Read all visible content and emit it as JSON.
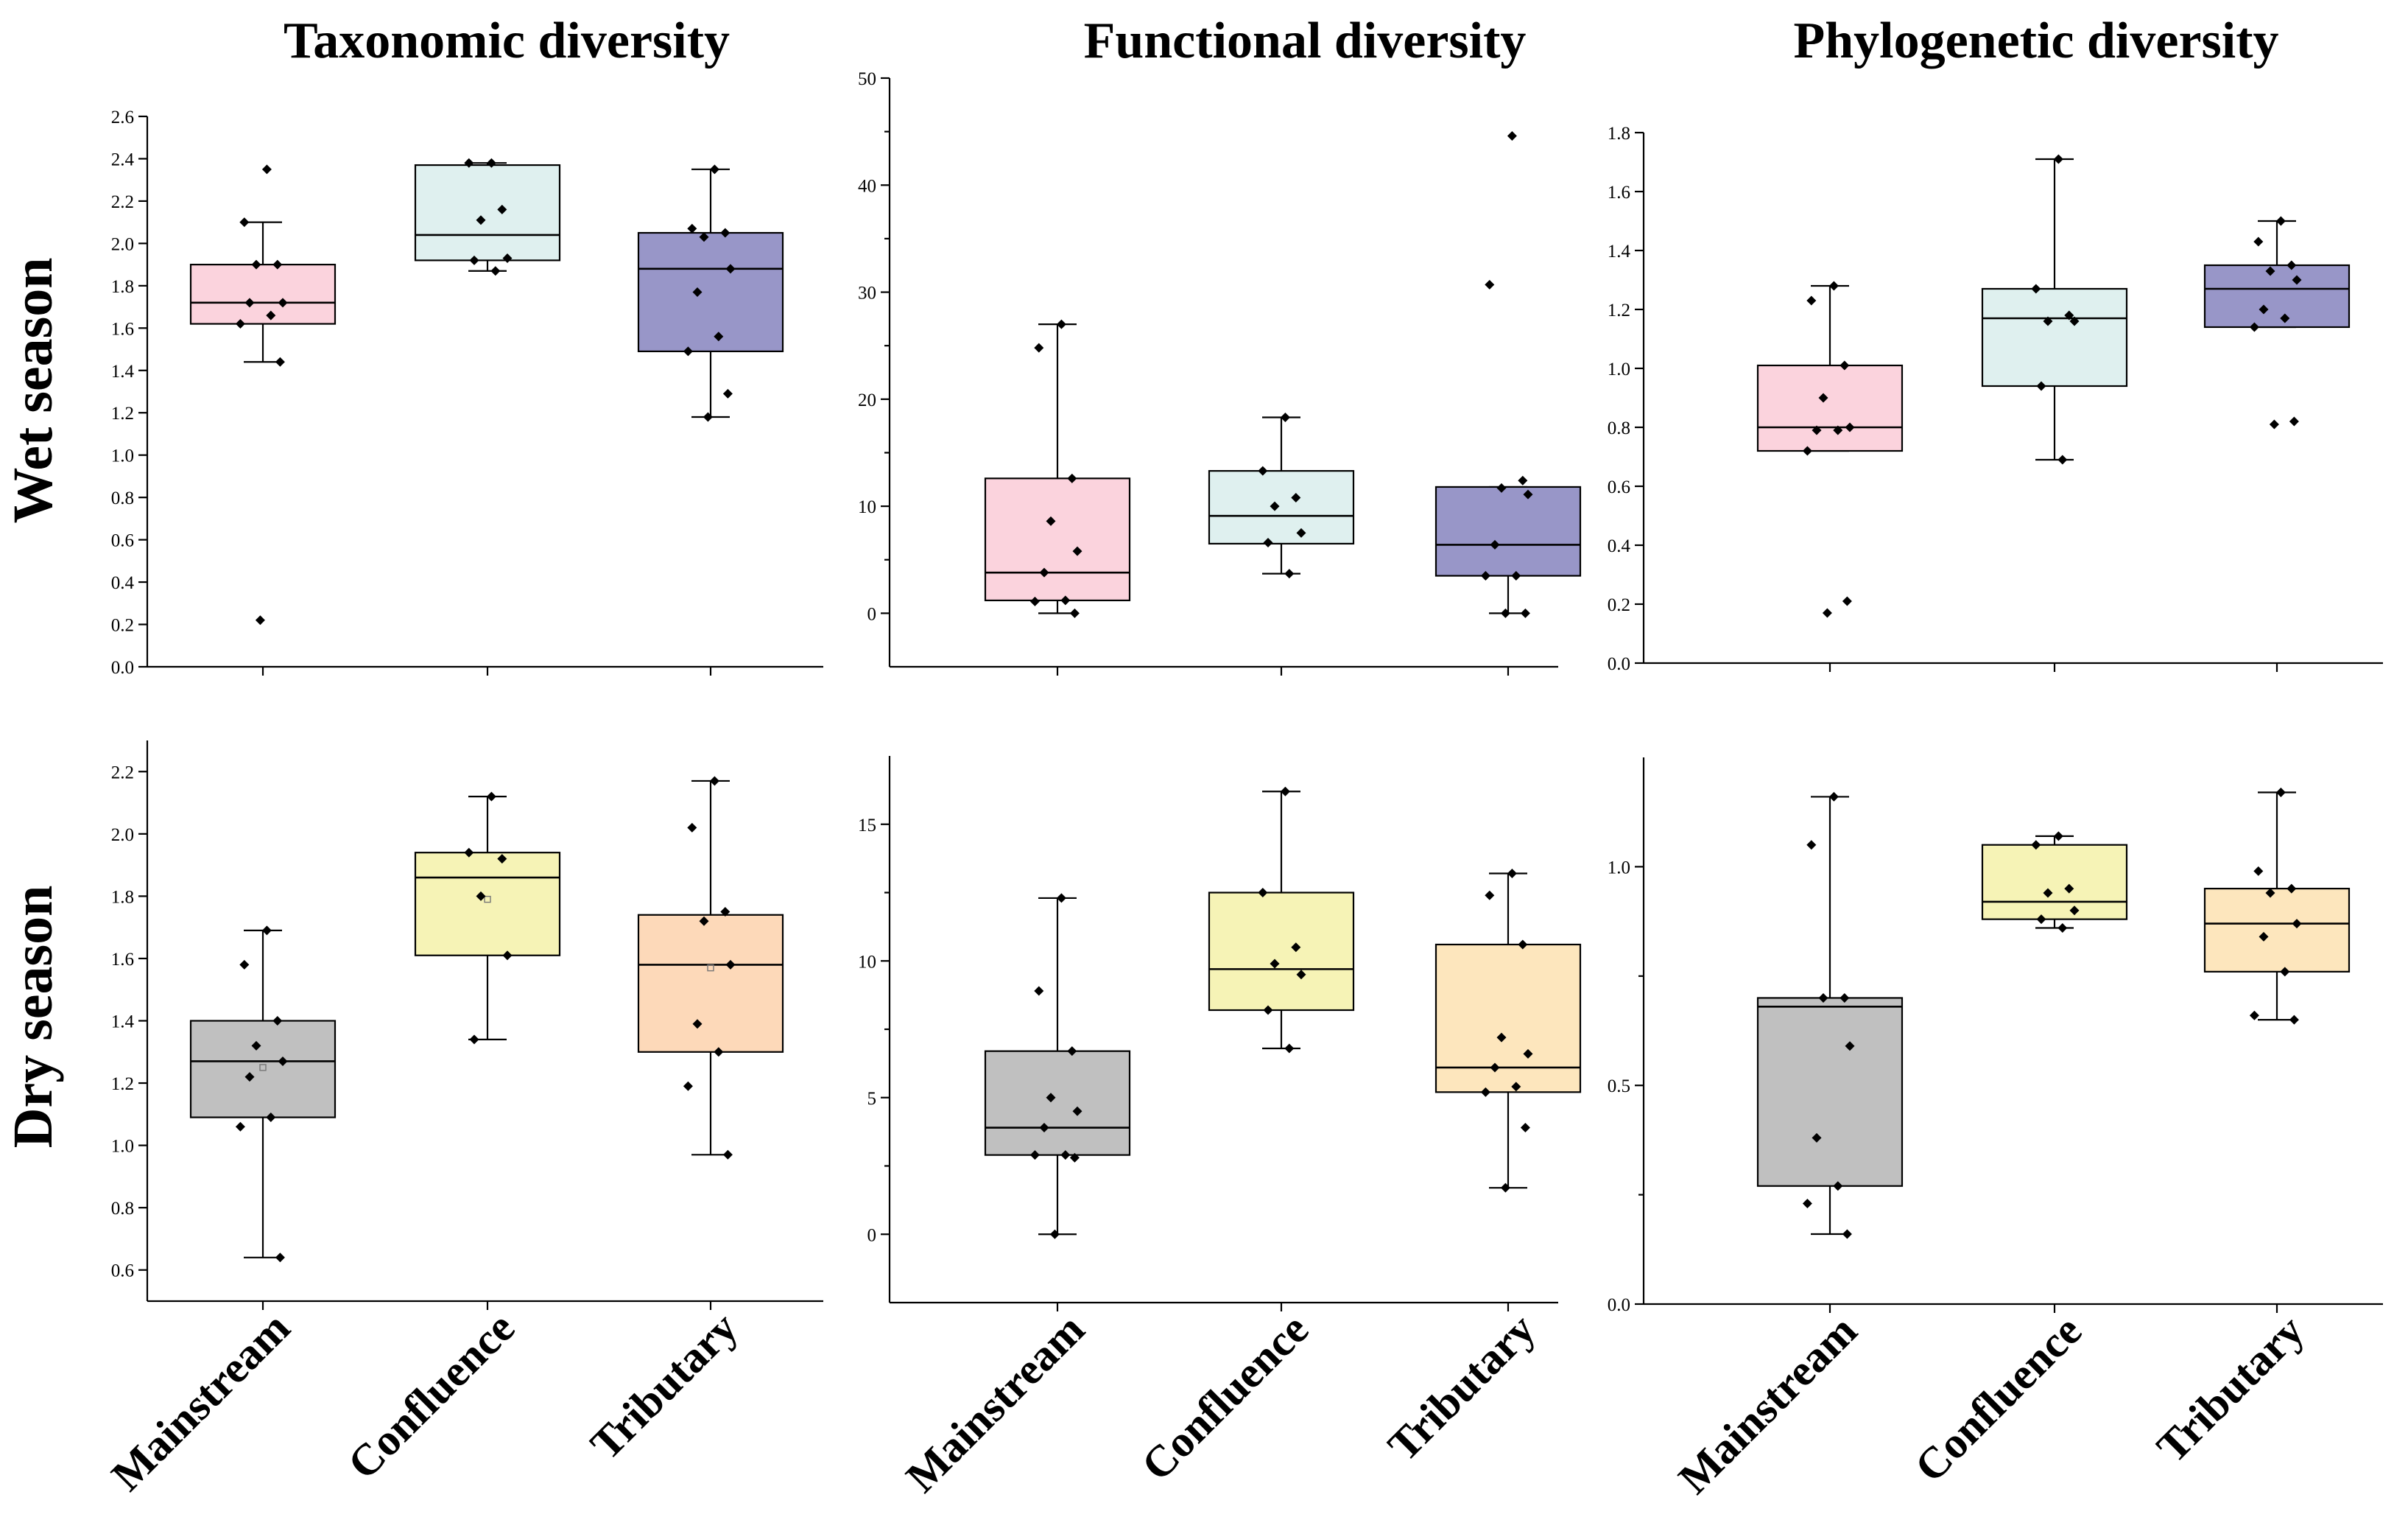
{
  "figure": {
    "column_titles": [
      "Taxonomic diversity",
      "Functional diversity",
      "Phylogenetic diversity"
    ],
    "row_titles": [
      "Wet season",
      "Dry season"
    ],
    "categories": [
      "Mainstream",
      "Confluence",
      "Tributary"
    ]
  },
  "colors": {
    "wet": [
      "#fbd3dd",
      "#dff0ef",
      "#9896c8"
    ],
    "dry_taxonomic": [
      "#c0c0c0",
      "#f6f3b6",
      "#fdd9b9"
    ],
    "dry_functional": [
      "#c0c0c0",
      "#f6f3b6",
      "#fde6bd"
    ],
    "dry_phylogenetic": [
      "#c0c0c0",
      "#f6f3b6",
      "#fde6bd"
    ]
  },
  "chart_data": [
    {
      "type": "box",
      "panel": "Wet season - Taxonomic diversity",
      "categories": [
        "Mainstream",
        "Confluence",
        "Tributary"
      ],
      "ylim": [
        0,
        2.6
      ],
      "yticks": [
        "0.0",
        "0.2",
        "0.4",
        "0.6",
        "0.8",
        "1.0",
        "1.2",
        "1.4",
        "1.6",
        "1.8",
        "2.0",
        "2.2",
        "2.4",
        "2.6"
      ],
      "boxes": [
        {
          "q1": 1.62,
          "median": 1.72,
          "q3": 1.9,
          "whisker_low": 1.44,
          "whisker_high": 2.1
        },
        {
          "q1": 1.92,
          "median": 2.04,
          "q3": 2.37,
          "whisker_low": 1.87,
          "whisker_high": 2.38
        },
        {
          "q1": 1.49,
          "median": 1.88,
          "q3": 2.05,
          "whisker_low": 1.18,
          "whisker_high": 2.35
        }
      ],
      "points": [
        [
          2.35,
          2.1,
          1.9,
          1.9,
          1.72,
          1.72,
          1.66,
          1.62,
          1.44,
          0.22
        ],
        [
          2.38,
          2.38,
          2.16,
          2.11,
          1.93,
          1.92,
          1.87
        ],
        [
          2.35,
          2.07,
          2.05,
          2.03,
          1.88,
          1.77,
          1.56,
          1.49,
          1.29,
          1.18
        ]
      ]
    },
    {
      "type": "box",
      "panel": "Wet season - Functional diversity",
      "categories": [
        "Mainstream",
        "Confluence",
        "Tributary"
      ],
      "ylim": [
        -5,
        50
      ],
      "yticks": [
        "0",
        "10",
        "20",
        "30",
        "40",
        "50"
      ],
      "boxes": [
        {
          "q1": 1.2,
          "median": 3.8,
          "q3": 12.6,
          "whisker_low": 0.0,
          "whisker_high": 27.0
        },
        {
          "q1": 6.5,
          "median": 9.1,
          "q3": 13.3,
          "whisker_low": 3.7,
          "whisker_high": 18.3
        },
        {
          "q1": 3.5,
          "median": 6.4,
          "q3": 11.8,
          "whisker_low": 0.0,
          "whisker_high": 11.8
        }
      ],
      "points": [
        [
          27.0,
          24.8,
          12.6,
          8.6,
          5.8,
          3.8,
          1.2,
          1.1,
          0.0
        ],
        [
          18.3,
          13.3,
          10.8,
          10.0,
          7.5,
          6.6,
          3.7
        ],
        [
          44.6,
          30.7,
          12.4,
          11.7,
          11.1,
          6.4,
          3.5,
          3.5,
          0.0,
          0.0
        ]
      ]
    },
    {
      "type": "box",
      "panel": "Wet season - Phylogenetic diversity",
      "categories": [
        "Mainstream",
        "Confluence",
        "Tributary"
      ],
      "ylim": [
        0,
        1.8
      ],
      "yticks": [
        "0.0",
        "0.2",
        "0.4",
        "0.6",
        "0.8",
        "1.0",
        "1.2",
        "1.4",
        "1.6",
        "1.8"
      ],
      "boxes": [
        {
          "q1": 0.72,
          "median": 0.8,
          "q3": 1.01,
          "whisker_low": 0.72,
          "whisker_high": 1.28
        },
        {
          "q1": 0.94,
          "median": 1.17,
          "q3": 1.27,
          "whisker_low": 0.69,
          "whisker_high": 1.71
        },
        {
          "q1": 1.14,
          "median": 1.27,
          "q3": 1.35,
          "whisker_low": 1.14,
          "whisker_high": 1.5
        }
      ],
      "points": [
        [
          1.28,
          1.23,
          1.01,
          0.9,
          0.8,
          0.79,
          0.79,
          0.72,
          0.21,
          0.17
        ],
        [
          1.71,
          1.27,
          1.18,
          1.16,
          1.16,
          0.94,
          0.69
        ],
        [
          1.5,
          1.43,
          1.35,
          1.33,
          1.3,
          1.2,
          1.17,
          1.14,
          0.82,
          0.81
        ]
      ]
    },
    {
      "type": "box",
      "panel": "Dry season - Taxonomic diversity",
      "categories": [
        "Mainstream",
        "Confluence",
        "Tributary"
      ],
      "ylim": [
        0.5,
        2.3
      ],
      "yticks": [
        "0.6",
        "0.8",
        "1.0",
        "1.2",
        "1.4",
        "1.6",
        "1.8",
        "2.0",
        "2.2"
      ],
      "boxes": [
        {
          "q1": 1.09,
          "median": 1.27,
          "q3": 1.4,
          "whisker_low": 0.64,
          "whisker_high": 1.69,
          "mean": 1.25
        },
        {
          "q1": 1.61,
          "median": 1.86,
          "q3": 1.94,
          "whisker_low": 1.34,
          "whisker_high": 2.12,
          "mean": 1.79
        },
        {
          "q1": 1.3,
          "median": 1.58,
          "q3": 1.74,
          "whisker_low": 0.97,
          "whisker_high": 2.17,
          "mean": 1.57
        }
      ],
      "points": [
        [
          1.69,
          1.58,
          1.4,
          1.32,
          1.27,
          1.22,
          1.09,
          1.06,
          0.64
        ],
        [
          2.12,
          1.94,
          1.92,
          1.8,
          1.61,
          1.34
        ],
        [
          2.17,
          2.02,
          1.75,
          1.72,
          1.58,
          1.39,
          1.3,
          1.19,
          0.97
        ]
      ]
    },
    {
      "type": "box",
      "panel": "Dry season - Functional diversity",
      "categories": [
        "Mainstream",
        "Confluence",
        "Tributary"
      ],
      "ylim": [
        -2.5,
        17.5
      ],
      "yticks": [
        "0",
        "5",
        "10",
        "15"
      ],
      "boxes": [
        {
          "q1": 2.9,
          "median": 3.9,
          "q3": 6.7,
          "whisker_low": 0.0,
          "whisker_high": 12.3
        },
        {
          "q1": 8.2,
          "median": 9.7,
          "q3": 12.5,
          "whisker_low": 6.8,
          "whisker_high": 16.2
        },
        {
          "q1": 5.2,
          "median": 6.1,
          "q3": 10.6,
          "whisker_low": 1.7,
          "whisker_high": 13.2
        }
      ],
      "points": [
        [
          12.3,
          8.9,
          6.7,
          5.0,
          4.5,
          3.9,
          2.9,
          2.9,
          2.8,
          0.0
        ],
        [
          16.2,
          12.5,
          10.5,
          9.9,
          9.5,
          8.2,
          6.8
        ],
        [
          13.2,
          12.4,
          10.6,
          7.2,
          6.6,
          6.1,
          5.4,
          5.2,
          3.9,
          1.7
        ]
      ]
    },
    {
      "type": "box",
      "panel": "Dry season - Phylogenetic diversity",
      "categories": [
        "Mainstream",
        "Confluence",
        "Tributary"
      ],
      "ylim": [
        0,
        1.25
      ],
      "yticks": [
        "0.0",
        "0.5",
        "1.0"
      ],
      "boxes": [
        {
          "q1": 0.27,
          "median": 0.68,
          "q3": 0.7,
          "whisker_low": 0.16,
          "whisker_high": 1.16
        },
        {
          "q1": 0.88,
          "median": 0.92,
          "q3": 1.05,
          "whisker_low": 0.86,
          "whisker_high": 1.07
        },
        {
          "q1": 0.76,
          "median": 0.87,
          "q3": 0.95,
          "whisker_low": 0.65,
          "whisker_high": 1.17
        }
      ],
      "points": [
        [
          1.16,
          1.05,
          0.7,
          0.7,
          0.59,
          0.38,
          0.27,
          0.23,
          0.16
        ],
        [
          1.07,
          1.05,
          0.95,
          0.94,
          0.9,
          0.88,
          0.86
        ],
        [
          1.17,
          0.99,
          0.95,
          0.94,
          0.87,
          0.84,
          0.76,
          0.66,
          0.65
        ]
      ]
    }
  ]
}
